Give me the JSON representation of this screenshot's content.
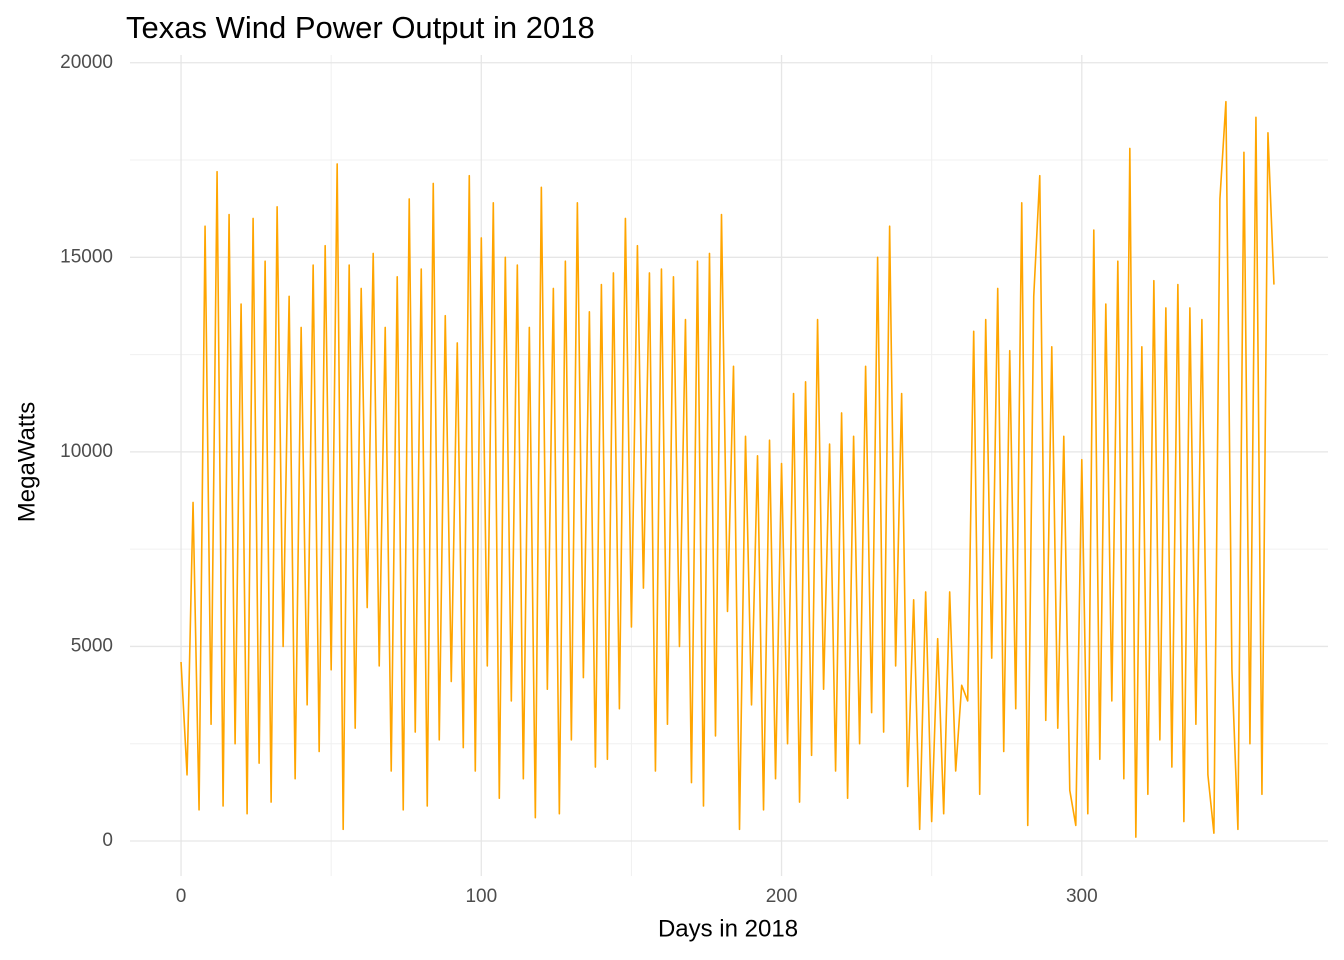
{
  "chart_data": {
    "type": "line",
    "title": "Texas Wind Power Output in 2018",
    "x_label": "Days in 2018",
    "y_label": "MegaWatts",
    "x": [
      0,
      2,
      4,
      6,
      8,
      10,
      12,
      14,
      16,
      18,
      20,
      22,
      24,
      26,
      28,
      30,
      32,
      34,
      36,
      38,
      40,
      42,
      44,
      46,
      48,
      50,
      52,
      54,
      56,
      58,
      60,
      62,
      64,
      66,
      68,
      70,
      72,
      74,
      76,
      78,
      80,
      82,
      84,
      86,
      88,
      90,
      92,
      94,
      96,
      98,
      100,
      102,
      104,
      106,
      108,
      110,
      112,
      114,
      116,
      118,
      120,
      122,
      124,
      126,
      128,
      130,
      132,
      134,
      136,
      138,
      140,
      142,
      144,
      146,
      148,
      150,
      152,
      154,
      156,
      158,
      160,
      162,
      164,
      166,
      168,
      170,
      172,
      174,
      176,
      178,
      180,
      182,
      184,
      186,
      188,
      190,
      192,
      194,
      196,
      198,
      200,
      202,
      204,
      206,
      208,
      210,
      212,
      214,
      216,
      218,
      220,
      222,
      224,
      226,
      228,
      230,
      232,
      234,
      236,
      238,
      240,
      242,
      244,
      246,
      248,
      250,
      252,
      254,
      256,
      258,
      260,
      262,
      264,
      266,
      268,
      270,
      272,
      274,
      276,
      278,
      280,
      282,
      284,
      286,
      288,
      290,
      292,
      294,
      296,
      298,
      300,
      302,
      304,
      306,
      308,
      310,
      312,
      314,
      316,
      318,
      320,
      322,
      324,
      326,
      328,
      330,
      332,
      334,
      336,
      338,
      340,
      342,
      344,
      346,
      348,
      350,
      352,
      354,
      356,
      358,
      360,
      362,
      364
    ],
    "values": [
      4600,
      1700,
      8700,
      800,
      15800,
      3000,
      17200,
      900,
      16100,
      2500,
      13800,
      700,
      16000,
      2000,
      14900,
      1000,
      16300,
      5000,
      14000,
      1600,
      13200,
      3500,
      14800,
      2300,
      15300,
      4400,
      17400,
      300,
      14800,
      2900,
      14200,
      6000,
      15100,
      4500,
      13200,
      1800,
      14500,
      800,
      16500,
      2800,
      14700,
      900,
      16900,
      2600,
      13500,
      4100,
      12800,
      2400,
      17100,
      1800,
      15500,
      4500,
      16400,
      1100,
      15000,
      3600,
      14800,
      1600,
      13200,
      600,
      16800,
      3900,
      14200,
      700,
      14900,
      2600,
      16400,
      4200,
      13600,
      1900,
      14300,
      2100,
      14600,
      3400,
      16000,
      5500,
      15300,
      6500,
      14600,
      1800,
      14700,
      3000,
      14500,
      5000,
      13400,
      1500,
      14900,
      900,
      15100,
      2700,
      16100,
      5900,
      12200,
      300,
      10400,
      3500,
      9900,
      800,
      10300,
      1600,
      9700,
      2500,
      11500,
      1000,
      11800,
      2200,
      13400,
      3900,
      10200,
      1800,
      11000,
      1100,
      10400,
      2500,
      12200,
      3300,
      15000,
      2800,
      15800,
      4500,
      11500,
      1400,
      6200,
      300,
      6400,
      500,
      5200,
      700,
      6400,
      1800,
      4000,
      3600,
      13100,
      1200,
      13400,
      4700,
      14200,
      2300,
      12600,
      3400,
      16400,
      400,
      14000,
      17100,
      3100,
      12700,
      2900,
      10400,
      1300,
      400,
      9800,
      700,
      15700,
      2100,
      13800,
      3600,
      14900,
      1600,
      17800,
      100,
      12700,
      1200,
      14400,
      2600,
      13700,
      1900,
      14300,
      500,
      13700,
      3000,
      13400,
      1700,
      200,
      16500,
      19000,
      4400,
      300,
      17700,
      2500,
      18600,
      1200,
      18200,
      14300
    ],
    "color": "#FFA500",
    "xlim": [
      -17,
      382
    ],
    "xticks": [
      0,
      100,
      200,
      300
    ],
    "ylim": [
      -900,
      20200
    ],
    "yticks": [
      0,
      5000,
      10000,
      15000,
      20000
    ],
    "grid": true
  }
}
